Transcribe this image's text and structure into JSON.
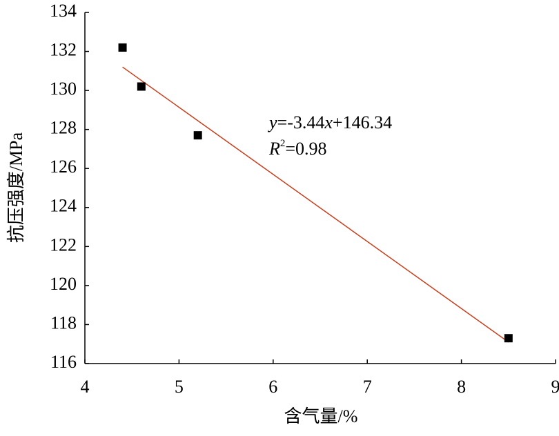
{
  "chart_data": {
    "type": "scatter",
    "x_label": "含气量/%",
    "y_label": "抗压强度/MPa",
    "xlim": [
      4,
      9
    ],
    "xticks": [
      4,
      5,
      6,
      7,
      8,
      9
    ],
    "ylim": [
      116,
      134
    ],
    "yticks": [
      116,
      118,
      120,
      122,
      124,
      126,
      128,
      130,
      132,
      134
    ],
    "series": [
      {
        "x": [
          4.4,
          4.6,
          5.2,
          8.5
        ],
        "values": [
          132.2,
          130.2,
          127.7,
          117.3
        ],
        "color": "#000000"
      }
    ],
    "trendline": {
      "x": [
        4.4,
        8.5
      ],
      "values": [
        131.2,
        117.1
      ],
      "color": "#c8401e"
    },
    "equation": [
      "y",
      "=-3.44",
      "x",
      "+146.34"
    ],
    "r_squared": [
      "R",
      "2",
      "=0.98"
    ]
  }
}
